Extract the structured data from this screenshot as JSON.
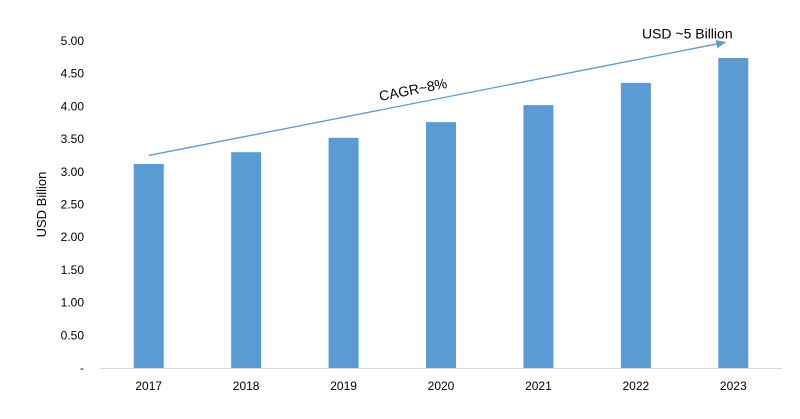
{
  "chart_data": {
    "type": "bar",
    "categories": [
      "2017",
      "2018",
      "2019",
      "2020",
      "2021",
      "2022",
      "2023"
    ],
    "values": [
      3.12,
      3.3,
      3.52,
      3.76,
      4.02,
      4.36,
      4.74
    ],
    "ylabel": "USD Billion",
    "ylim": [
      0,
      5
    ],
    "yticks": [
      0,
      0.5,
      1.0,
      1.5,
      2.0,
      2.5,
      3.0,
      3.5,
      4.0,
      4.5,
      5.0
    ],
    "ytick_labels": [
      "-",
      "0.50",
      "1.00",
      "1.50",
      "2.00",
      "2.50",
      "3.00",
      "3.50",
      "4.00",
      "4.50",
      "5.00"
    ],
    "grid": false,
    "bar_color": "#5B9BD5",
    "arrow_color": "#5B9BD5",
    "annotations": {
      "cagr": "CAGR~8%",
      "end_value": "USD ~5 Billion"
    },
    "trend_arrow": {
      "from": {
        "x": "2017",
        "y": 3.25
      },
      "to": {
        "x": "2023",
        "y": 4.98
      }
    }
  }
}
